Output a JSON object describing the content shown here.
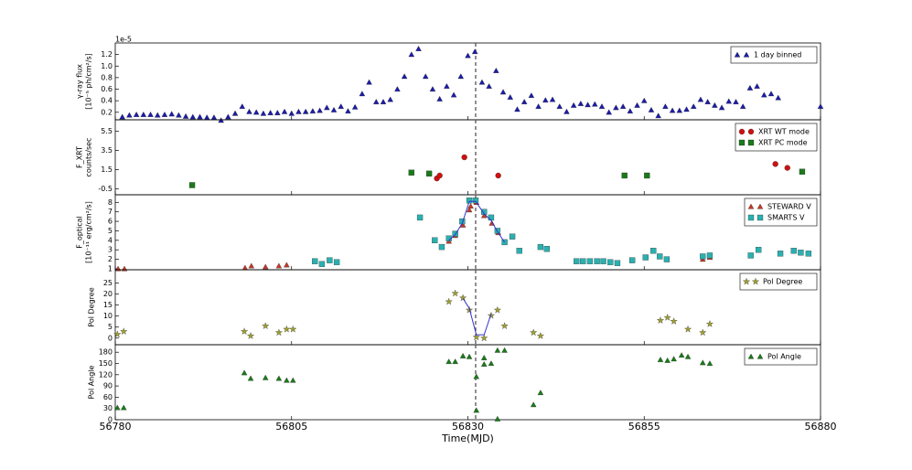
{
  "chart_data": [
    {
      "type": "scatter",
      "offset_text": "1e-5",
      "ylabel": [
        "γ-ray flux",
        "[10⁻⁵ ph/cm²/s]"
      ],
      "xlim": [
        56780,
        56880
      ],
      "ylim": [
        0.07,
        1.4
      ],
      "yticks": [
        0.2,
        0.4,
        0.6,
        0.8,
        {
          "value": 1,
          "label": "1.0"
        },
        1.2
      ],
      "vline": 56831.1,
      "legend": "upper right",
      "series": [
        {
          "name": "1 day binned",
          "color": "#1c1ca8",
          "marker": "triangle",
          "x": [
            56781,
            56782,
            56783,
            56784,
            56785,
            56786,
            56787,
            56788,
            56789,
            56790,
            56791,
            56792,
            56793,
            56794,
            56795,
            56796,
            56797,
            56798,
            56799,
            56800,
            56801,
            56802,
            56803,
            56804,
            56805,
            56806,
            56807,
            56808,
            56809,
            56810,
            56811,
            56812,
            56813,
            56814,
            56815,
            56816,
            56817,
            56818,
            56819,
            56820,
            56821,
            56822,
            56823,
            56824,
            56825,
            56826,
            56827,
            56828,
            56829,
            56830,
            56831,
            56832,
            56833,
            56834,
            56835,
            56836,
            56837,
            56838,
            56839,
            56840,
            56841,
            56842,
            56843,
            56844,
            56845,
            56846,
            56847,
            56848,
            56849,
            56850,
            56851,
            56852,
            56853,
            56854,
            56855,
            56856,
            56857,
            56858,
            56859,
            56860,
            56861,
            56862,
            56863,
            56864,
            56865,
            56866,
            56867,
            56868,
            56869,
            56870,
            56871,
            56872,
            56873,
            56874,
            56880
          ],
          "values": [
            0.12,
            0.15,
            0.16,
            0.16,
            0.16,
            0.15,
            0.16,
            0.17,
            0.15,
            0.13,
            0.12,
            0.12,
            0.11,
            0.11,
            0.06,
            0.12,
            0.18,
            0.3,
            0.21,
            0.2,
            0.18,
            0.19,
            0.19,
            0.21,
            0.18,
            0.21,
            0.21,
            0.22,
            0.23,
            0.28,
            0.24,
            0.3,
            0.22,
            0.29,
            0.52,
            0.72,
            0.38,
            0.38,
            0.42,
            0.6,
            0.82,
            1.2,
            1.3,
            0.82,
            0.6,
            0.43,
            0.65,
            0.5,
            0.82,
            1.18,
            1.25,
            0.72,
            0.65,
            0.92,
            0.55,
            0.46,
            0.25,
            0.38,
            0.49,
            0.3,
            0.41,
            0.42,
            0.3,
            0.21,
            0.32,
            0.35,
            0.33,
            0.34,
            0.3,
            0.2,
            0.28,
            0.3,
            0.22,
            0.32,
            0.4,
            0.24,
            0.14,
            0.3,
            0.23,
            0.23,
            0.25,
            0.3,
            0.42,
            0.38,
            0.32,
            0.28,
            0.39,
            0.38,
            0.3,
            0.62,
            0.65,
            0.5,
            0.52,
            0.45,
            0.3
          ]
        }
      ]
    },
    {
      "type": "scatter",
      "ylabel": [
        "F_XRT",
        "counts/sec"
      ],
      "xlim": [
        56780,
        56880
      ],
      "ylim": [
        -1.1,
        6.7
      ],
      "yticks": [
        -0.5,
        1.5,
        3.5,
        5.5
      ],
      "vline": 56831.1,
      "legend": "upper right",
      "series": [
        {
          "name": "XRT WT mode",
          "color": "#cc1111",
          "marker": "circle",
          "x": [
            56825.6,
            56826,
            56829.5,
            56834.3,
            56873.6,
            56875.3
          ],
          "values": [
            0.6,
            0.9,
            2.8,
            0.9,
            2.1,
            1.7
          ]
        },
        {
          "name": "XRT PC mode",
          "color": "#1a7a1a",
          "marker": "square",
          "x": [
            56790.9,
            56822,
            56824.5,
            56852.2,
            56855.4,
            56877.4
          ],
          "values": [
            -0.1,
            1.2,
            1.1,
            0.9,
            0.9,
            1.3
          ]
        }
      ]
    },
    {
      "type": "scatter",
      "ylabel": [
        "F_optical",
        "[10⁻¹¹ erg/cm²/s]"
      ],
      "xlim": [
        56780,
        56880
      ],
      "ylim": [
        0.9,
        8.8
      ],
      "yticks": [
        1,
        2,
        3,
        4,
        5,
        6,
        7,
        8
      ],
      "vline": 56831.1,
      "legend": "upper right",
      "series": [
        {
          "name": "STEWARD V",
          "color": "#c0392b",
          "marker": "triangle",
          "x": [
            56780.4,
            56781.3,
            56798.4,
            56799.3,
            56801.3,
            56803.2,
            56804.3,
            56827.3,
            56828.2,
            56829.3,
            56830.2,
            56830.4,
            56831.2,
            56832.3,
            56833.4,
            56834.3,
            56863.3,
            56864.3
          ],
          "values": [
            1,
            1,
            1.1,
            1.3,
            1.2,
            1.3,
            1.4,
            3.9,
            4.5,
            5.6,
            7.2,
            7.6,
            8,
            6.6,
            5.8,
            4.8,
            2,
            2.2
          ]
        },
        {
          "name": "SMARTS V",
          "color": "#2ab0b0",
          "marker": "square",
          "x": [
            56808.3,
            56809.3,
            56810.4,
            56811.4,
            56823.2,
            56825.3,
            56826.3,
            56827.3,
            56828.2,
            56829.2,
            56830.2,
            56831.1,
            56832.3,
            56833.3,
            56834.2,
            56835.2,
            56836.3,
            56837.3,
            56840.3,
            56841.2,
            56845.4,
            56846.3,
            56847.3,
            56848.3,
            56849.2,
            56850.2,
            56851.2,
            56853.3,
            56855.2,
            56856.3,
            56857.2,
            56858.2,
            56863.3,
            56864.3,
            56870.1,
            56871.2,
            56874.3,
            56876.2,
            56877.2,
            56878.3
          ],
          "values": [
            1.8,
            1.5,
            1.9,
            1.7,
            6.4,
            4,
            3.3,
            4.2,
            4.7,
            6,
            8.2,
            8.2,
            7,
            6.4,
            5,
            3.8,
            4.4,
            2.9,
            3.3,
            3.1,
            1.8,
            1.8,
            1.8,
            1.8,
            1.8,
            1.7,
            1.6,
            1.9,
            2.2,
            2.9,
            2.3,
            2,
            2.3,
            2.4,
            2.4,
            3,
            2.6,
            2.9,
            2.7,
            2.6
          ]
        },
        {
          "color": "#3333cc",
          "marker": "line",
          "x": [
            56827.3,
            56828.2,
            56829.2,
            56830.2,
            56831.1,
            56832.3,
            56833.3,
            56834.2,
            56835.2
          ],
          "values": [
            4,
            4.6,
            5.8,
            8.1,
            8.1,
            6.8,
            6.1,
            4.9,
            3.8
          ]
        }
      ]
    },
    {
      "type": "scatter",
      "ylabel": [
        "Pol Degree"
      ],
      "xlim": [
        56780,
        56880
      ],
      "ylim": [
        -3,
        31
      ],
      "yticks": [
        0,
        5,
        10,
        15,
        20,
        25
      ],
      "vline": 56831.1,
      "legend": "upper right",
      "series": [
        {
          "name": "Pol Degree",
          "color": "#a0a030",
          "marker": "star",
          "x": [
            56780.3,
            56781.2,
            56798.3,
            56799.2,
            56801.3,
            56803.2,
            56804.3,
            56805.2,
            56827.3,
            56828.2,
            56829.3,
            56830.2,
            56831.2,
            56832.3,
            56833.3,
            56834.2,
            56835.2,
            56839.3,
            56840.3,
            56857.3,
            56858.3,
            56859.2,
            56861.2,
            56863.3,
            56864.3
          ],
          "values": [
            1.7,
            3,
            3,
            1,
            5.5,
            2.5,
            4,
            4,
            16.5,
            20.3,
            18.2,
            12.7,
            0.4,
            0,
            10.2,
            12.7,
            5.5,
            2.5,
            1,
            8,
            9.3,
            7.6,
            4,
            2.5,
            6.4
          ]
        },
        {
          "color": "#3333cc",
          "marker": "line",
          "x": [
            56829.3,
            56830.2,
            56831.2,
            56832.3,
            56833.3
          ],
          "values": [
            18,
            13.5,
            1.5,
            1.5,
            11
          ]
        }
      ]
    },
    {
      "type": "scatter",
      "ylabel": [
        "Pol Angle"
      ],
      "xlabel": "Time(MJD)",
      "xlim": [
        56780,
        56880
      ],
      "xticks": [
        56780,
        56805,
        56830,
        56855,
        56880
      ],
      "ylim": [
        0,
        200
      ],
      "yticks": [
        0,
        30,
        60,
        90,
        120,
        150,
        180
      ],
      "vline": 56831.1,
      "legend": "upper right",
      "series": [
        {
          "name": "Pol Angle",
          "color": "#1a7a1a",
          "marker": "triangle",
          "x": [
            56780.3,
            56781.2,
            56798.3,
            56799.2,
            56801.3,
            56803.2,
            56804.3,
            56805.2,
            56827.3,
            56828.2,
            56829.3,
            56830.2,
            56831.2,
            56831.2,
            56832.3,
            56832.3,
            56833.3,
            56834.2,
            56835.2,
            56834.2,
            56839.3,
            56840.3,
            56857.3,
            56858.3,
            56859.2,
            56860.3,
            56861.2,
            56863.3,
            56864.3
          ],
          "values": [
            32,
            32,
            125,
            110,
            112,
            110,
            105,
            105,
            155,
            155,
            170,
            168,
            115,
            25,
            165,
            148,
            150,
            185,
            185,
            2,
            40,
            72,
            160,
            158,
            162,
            172,
            168,
            152,
            150
          ]
        }
      ]
    }
  ]
}
